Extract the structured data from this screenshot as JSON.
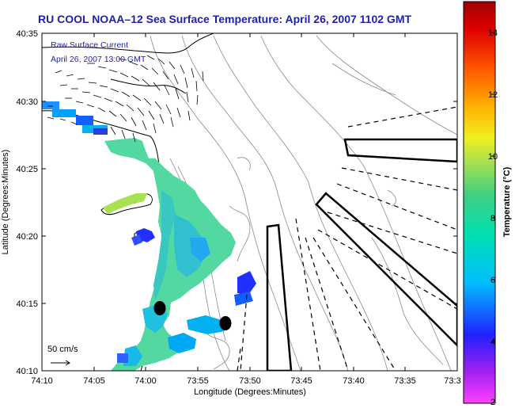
{
  "title": "RU COOL  NOAA–12  Sea Surface Temperature:  April 26, 2007 1102 GMT",
  "overlay": {
    "line1": "Raw Surface Current",
    "line2": "April 26, 2007 13:00 GMT",
    "scale_label": "50 cm/s"
  },
  "axes": {
    "xlabel": "Longitude (Degrees:Minutes)",
    "ylabel": "Latitude (Degrees:Minutes)",
    "x_ticks": [
      "74:10",
      "74:05",
      "74:00",
      "73:55",
      "73:50",
      "73:45",
      "73:40",
      "73:35",
      "73:3"
    ],
    "y_ticks": [
      "40:35",
      "40:30",
      "40:25",
      "40:20",
      "40:15",
      "40:10"
    ]
  },
  "colorbar": {
    "title": "Temperature (°C)",
    "ticks": [
      "14",
      "12",
      "10",
      "8",
      "6",
      "4",
      "2"
    ],
    "min": 2,
    "max": 15,
    "colors": [
      "#ff40ff",
      "#a020f0",
      "#2020ff",
      "#00bfff",
      "#00e0b0",
      "#40d080",
      "#a8e050",
      "#f0f020",
      "#ffb000",
      "#ff5000",
      "#e00000",
      "#a00000"
    ]
  },
  "colors": {
    "title": "#1f1fae",
    "land": "#ffffff",
    "sst_main": "#52d8a0"
  }
}
